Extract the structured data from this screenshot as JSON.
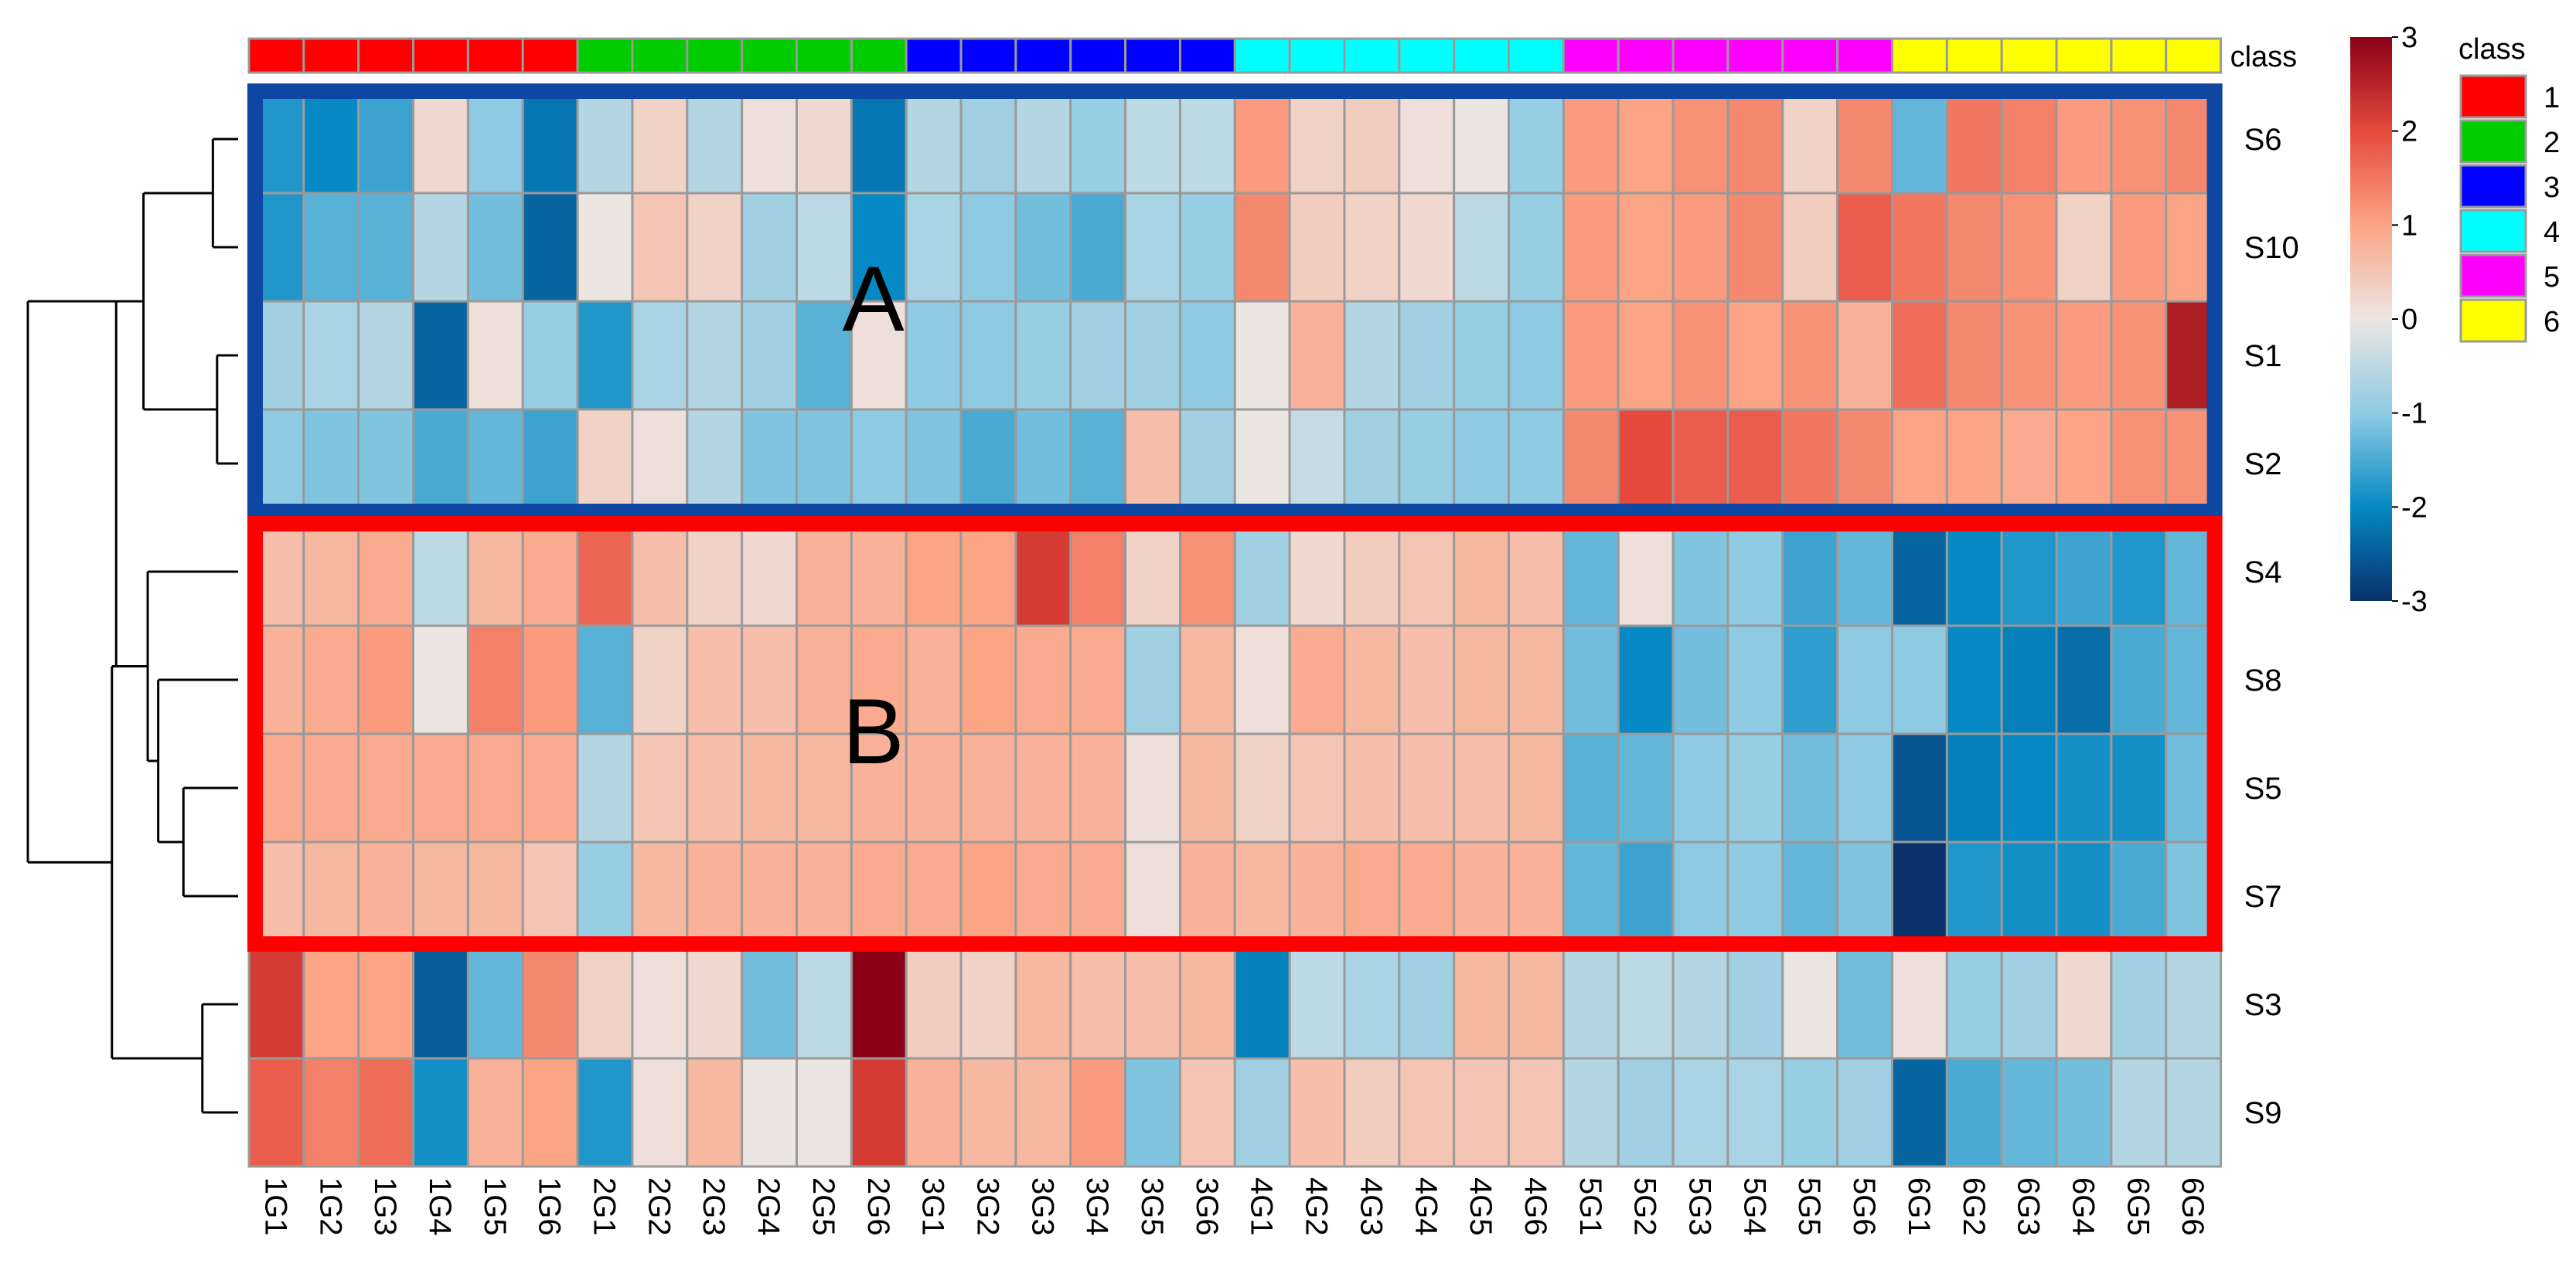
{
  "chart_data": {
    "type": "heatmap",
    "title": "",
    "annotation_label": "class",
    "legend_title": "class",
    "classes": [
      {
        "name": "1",
        "color": "#ff0000"
      },
      {
        "name": "2",
        "color": "#00cc00"
      },
      {
        "name": "3",
        "color": "#0000ff"
      },
      {
        "name": "4",
        "color": "#00ffff"
      },
      {
        "name": "5",
        "color": "#ff00ff"
      },
      {
        "name": "6",
        "color": "#ffff00"
      }
    ],
    "columns": [
      "1G1",
      "1G2",
      "1G3",
      "1G4",
      "1G5",
      "1G6",
      "2G1",
      "2G2",
      "2G3",
      "2G4",
      "2G5",
      "2G6",
      "3G1",
      "3G2",
      "3G3",
      "3G4",
      "3G5",
      "3G6",
      "4G1",
      "4G2",
      "4G3",
      "4G4",
      "4G5",
      "4G6",
      "5G1",
      "5G2",
      "5G3",
      "5G4",
      "5G5",
      "5G6",
      "6G1",
      "6G2",
      "6G3",
      "6G4",
      "6G5",
      "6G6"
    ],
    "column_classes": [
      "1",
      "1",
      "1",
      "1",
      "1",
      "1",
      "2",
      "2",
      "2",
      "2",
      "2",
      "2",
      "3",
      "3",
      "3",
      "3",
      "3",
      "3",
      "4",
      "4",
      "4",
      "4",
      "4",
      "4",
      "5",
      "5",
      "5",
      "5",
      "5",
      "5",
      "6",
      "6",
      "6",
      "6",
      "6",
      "6"
    ],
    "rows": [
      "S6",
      "S10",
      "S1",
      "S2",
      "S4",
      "S8",
      "S5",
      "S7",
      "S3",
      "S9"
    ],
    "values": [
      [
        -1.8,
        -2.0,
        -1.6,
        0.2,
        -1.0,
        -2.2,
        -0.6,
        0.3,
        -0.6,
        0.1,
        0.2,
        -2.2,
        -0.6,
        -0.8,
        -0.6,
        -0.9,
        -0.5,
        -0.5,
        1.1,
        0.3,
        0.4,
        0.1,
        0.0,
        -0.9,
        1.1,
        1.0,
        1.2,
        1.3,
        0.3,
        1.3,
        -1.3,
        1.5,
        1.4,
        1.1,
        1.2,
        1.3
      ],
      [
        -1.8,
        -1.4,
        -1.4,
        -0.6,
        -1.2,
        -2.4,
        0.0,
        0.5,
        0.3,
        -0.8,
        -0.5,
        -2.0,
        -0.7,
        -1.0,
        -1.2,
        -1.5,
        -0.7,
        -0.9,
        1.3,
        0.4,
        0.3,
        0.2,
        -0.5,
        -0.9,
        1.1,
        1.0,
        1.1,
        1.3,
        0.4,
        1.8,
        1.5,
        1.3,
        1.2,
        0.3,
        1.1,
        1.0
      ],
      [
        -0.8,
        -0.7,
        -0.6,
        -2.4,
        0.1,
        -0.9,
        -1.8,
        -0.7,
        -0.6,
        -0.8,
        -1.4,
        0.1,
        -1.0,
        -1.0,
        -0.9,
        -0.8,
        -0.8,
        -1.0,
        0.0,
        0.8,
        -0.6,
        -0.8,
        -0.9,
        -1.0,
        1.1,
        1.0,
        1.2,
        1.0,
        1.2,
        0.8,
        1.6,
        1.3,
        1.2,
        1.1,
        1.2,
        2.6
      ],
      [
        -1.0,
        -1.1,
        -1.1,
        -1.5,
        -1.3,
        -1.6,
        0.3,
        0.1,
        -0.6,
        -1.1,
        -1.1,
        -1.0,
        -1.1,
        -1.5,
        -1.2,
        -1.4,
        0.6,
        -0.8,
        0.0,
        -0.4,
        -0.8,
        -0.9,
        -1.0,
        -1.0,
        1.3,
        2.0,
        1.8,
        1.8,
        1.5,
        1.3,
        1.0,
        1.0,
        0.9,
        1.0,
        1.2,
        1.2
      ],
      [
        0.6,
        0.7,
        0.9,
        -0.5,
        0.7,
        0.9,
        1.7,
        0.6,
        0.3,
        0.2,
        0.8,
        0.8,
        1.0,
        1.0,
        2.2,
        1.4,
        0.3,
        1.2,
        -0.8,
        0.2,
        0.4,
        0.5,
        0.7,
        0.6,
        -1.3,
        0.1,
        -1.1,
        -1.0,
        -1.6,
        -1.3,
        -2.4,
        -2.0,
        -1.8,
        -1.6,
        -1.8,
        -1.3
      ],
      [
        0.8,
        0.9,
        1.1,
        0.0,
        1.4,
        1.1,
        -1.4,
        0.3,
        0.6,
        0.6,
        0.8,
        0.9,
        0.8,
        1.0,
        0.9,
        0.9,
        -0.8,
        0.7,
        0.1,
        0.9,
        0.7,
        0.6,
        0.7,
        0.7,
        -1.2,
        -2.0,
        -1.2,
        -1.0,
        -1.7,
        -1.0,
        -1.0,
        -2.0,
        -2.1,
        -2.3,
        -1.5,
        -1.3
      ],
      [
        0.9,
        0.9,
        0.9,
        0.9,
        0.9,
        0.9,
        -0.6,
        0.5,
        0.6,
        0.7,
        0.7,
        0.8,
        0.8,
        0.8,
        0.8,
        0.8,
        0.1,
        0.7,
        0.3,
        0.5,
        0.6,
        0.6,
        0.6,
        0.7,
        -1.4,
        -1.3,
        -1.0,
        -0.9,
        -1.2,
        -1.0,
        -2.6,
        -2.1,
        -2.0,
        -1.9,
        -1.9,
        -1.2
      ],
      [
        0.6,
        0.7,
        0.8,
        0.7,
        0.7,
        0.5,
        -0.9,
        0.7,
        0.8,
        0.8,
        0.8,
        0.9,
        0.9,
        1.0,
        0.9,
        0.9,
        0.1,
        0.8,
        0.7,
        0.8,
        0.9,
        0.9,
        0.8,
        0.8,
        -1.3,
        -1.6,
        -1.0,
        -1.0,
        -1.3,
        -1.1,
        -3.2,
        -1.8,
        -1.9,
        -1.9,
        -1.5,
        -1.1
      ],
      [
        2.2,
        1.0,
        1.0,
        -2.5,
        -1.3,
        1.3,
        0.3,
        0.1,
        0.2,
        -1.2,
        -0.5,
        3.0,
        0.4,
        0.3,
        0.7,
        0.6,
        0.6,
        0.7,
        -2.1,
        -0.5,
        -0.7,
        -0.8,
        0.7,
        0.7,
        -0.6,
        -0.5,
        -0.6,
        -0.8,
        0.0,
        -1.2,
        0.1,
        -0.9,
        -0.8,
        0.2,
        -0.8,
        -0.6
      ],
      [
        1.8,
        1.4,
        1.6,
        -1.9,
        0.8,
        1.0,
        -1.8,
        0.1,
        0.7,
        0.0,
        0.0,
        2.2,
        0.8,
        0.7,
        0.7,
        1.1,
        -1.1,
        0.5,
        -0.8,
        0.6,
        0.4,
        0.5,
        0.5,
        0.5,
        -0.6,
        -0.8,
        -0.7,
        -0.7,
        -0.9,
        -0.8,
        -2.4,
        -1.5,
        -1.3,
        -1.2,
        -0.6,
        -0.6
      ]
    ],
    "row_dendrogram_order": [
      "S6",
      "S10",
      "S1",
      "S2",
      "S4",
      "S8",
      "S5",
      "S7",
      "S3",
      "S9"
    ],
    "color_scale": {
      "min": -3,
      "max": 3,
      "ticks": [
        "3",
        "2",
        "1",
        "0",
        "-1",
        "-2",
        "-3"
      ],
      "stops": [
        {
          "v": -3,
          "color": "#08306b"
        },
        {
          "v": -2,
          "color": "#0689c4"
        },
        {
          "v": -1,
          "color": "#8ecbe3"
        },
        {
          "v": 0,
          "color": "#ece6e3"
        },
        {
          "v": 1,
          "color": "#fca486"
        },
        {
          "v": 2,
          "color": "#e54a3c"
        },
        {
          "v": 3,
          "color": "#8b0016"
        }
      ]
    },
    "cluster_boxes": [
      {
        "label": "A",
        "rows": [
          "S6",
          "S10",
          "S1",
          "S2"
        ],
        "color": "#0d47a1"
      },
      {
        "label": "B",
        "rows": [
          "S4",
          "S8",
          "S5",
          "S7"
        ],
        "color": "#ff0000"
      }
    ]
  }
}
